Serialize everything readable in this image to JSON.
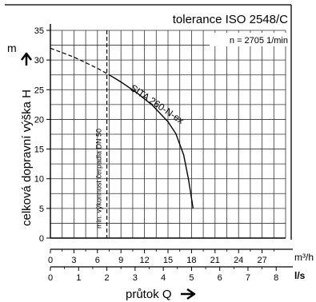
{
  "chart_data": {
    "type": "line",
    "title": "tolerance ISO 2548/C",
    "speed_label": "n = 2705 1/min",
    "ylabel": "celková dopravní výška H",
    "ylabel_unit": "m",
    "xlabel": "průtok Q",
    "x_unit_top": "m³/h",
    "x_unit_bottom": "l/s",
    "ylim": [
      0,
      35
    ],
    "xlim": [
      0,
      30
    ],
    "y_ticks": [
      0,
      5,
      10,
      15,
      20,
      25,
      30,
      35
    ],
    "x_ticks_m3h": [
      0,
      3,
      6,
      9,
      12,
      15,
      18,
      21,
      24,
      27
    ],
    "x_ticks_ls": [
      0,
      1,
      2,
      3,
      4,
      5,
      6,
      7,
      8
    ],
    "grid": true,
    "series": [
      {
        "name": "SITA 260-N-ex",
        "x": [
          0,
          3,
          6,
          7.5,
          9,
          11,
          13,
          15,
          16,
          17,
          17.6,
          18.2
        ],
        "y": [
          32,
          30.5,
          28.6,
          27.5,
          26.3,
          24.5,
          22.4,
          19.6,
          17.6,
          14,
          10,
          5
        ],
        "dashed_until_x": 7.5
      }
    ],
    "annotations": [
      {
        "text": "min. výkonnost čerpadla DN 50",
        "x": 7.2,
        "orientation": "vertical"
      }
    ]
  }
}
